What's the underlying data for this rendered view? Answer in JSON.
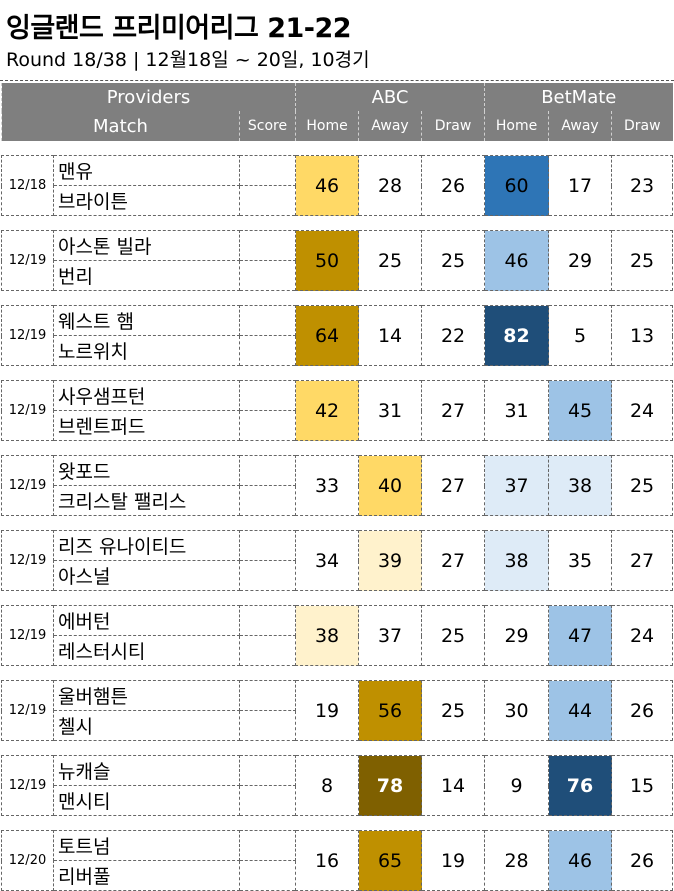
{
  "header": {
    "title": "잉글랜드 프리미어리그 21-22",
    "subtitle": "Round 18/38 | 12월18일 ~ 20일, 10경기"
  },
  "columns": {
    "providers_label": "Providers",
    "match_label": "Match",
    "score_label": "Score",
    "provider1": "ABC",
    "provider2": "BetMate",
    "home": "Home",
    "away": "Away",
    "draw": "Draw"
  },
  "colors": {
    "header_bg": "#7f7f7f",
    "abc_scale": [
      "#fff2cc",
      "#ffd966",
      "#bf9000",
      "#7f6000"
    ],
    "betmate_scale": [
      "#deebf7",
      "#9dc3e6",
      "#2e75b6",
      "#1f4e79"
    ]
  },
  "matches": [
    {
      "date": "12/18",
      "home": "맨유",
      "away": "브라이튼",
      "abc": [
        "46",
        "28",
        "26"
      ],
      "bet": [
        "60",
        "17",
        "23"
      ]
    },
    {
      "date": "12/19",
      "home": "아스톤 빌라",
      "away": "번리",
      "abc": [
        "50",
        "25",
        "25"
      ],
      "bet": [
        "46",
        "29",
        "25"
      ]
    },
    {
      "date": "12/19",
      "home": "웨스트 햄",
      "away": "노르위치",
      "abc": [
        "64",
        "14",
        "22"
      ],
      "bet": [
        "82",
        "5",
        "13"
      ]
    },
    {
      "date": "12/19",
      "home": "사우샘프턴",
      "away": "브렌트퍼드",
      "abc": [
        "42",
        "31",
        "27"
      ],
      "bet": [
        "31",
        "45",
        "24"
      ]
    },
    {
      "date": "12/19",
      "home": "왓포드",
      "away": "크리스탈 팰리스",
      "abc": [
        "33",
        "40",
        "27"
      ],
      "bet": [
        "37",
        "38",
        "25"
      ]
    },
    {
      "date": "12/19",
      "home": "리즈 유나이티드",
      "away": "아스널",
      "abc": [
        "34",
        "39",
        "27"
      ],
      "bet": [
        "38",
        "35",
        "27"
      ]
    },
    {
      "date": "12/19",
      "home": "에버턴",
      "away": "레스터시티",
      "abc": [
        "38",
        "37",
        "25"
      ],
      "bet": [
        "29",
        "47",
        "24"
      ]
    },
    {
      "date": "12/19",
      "home": "울버햄튼",
      "away": "첼시",
      "abc": [
        "19",
        "56",
        "25"
      ],
      "bet": [
        "30",
        "44",
        "26"
      ]
    },
    {
      "date": "12/19",
      "home": "뉴캐슬",
      "away": "맨시티",
      "abc": [
        "8",
        "78",
        "14"
      ],
      "bet": [
        "9",
        "76",
        "15"
      ]
    },
    {
      "date": "12/20",
      "home": "토트넘",
      "away": "리버풀",
      "abc": [
        "16",
        "65",
        "19"
      ],
      "bet": [
        "28",
        "46",
        "26"
      ]
    }
  ]
}
